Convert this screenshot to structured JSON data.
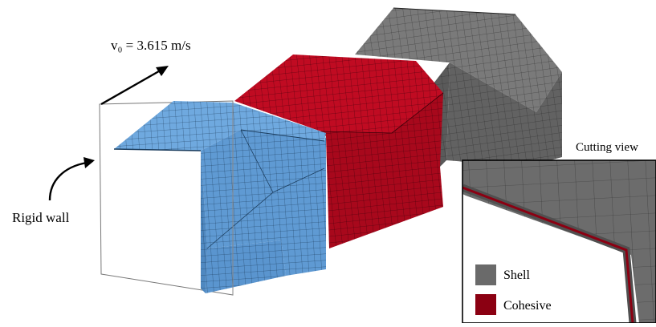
{
  "labels": {
    "velocity": "v₀ = 3.615 m/s",
    "rigid_wall": "Rigid wall",
    "cutting_view": "Cutting view"
  },
  "legend": [
    {
      "label": "Shell",
      "color": "#6a6a6a"
    },
    {
      "label": "Cohesive",
      "color": "#8b0012"
    }
  ],
  "colors": {
    "blue_module": "#6aa5dc",
    "red_module": "#b8091f",
    "gray_module": "#6e6e6e",
    "mesh_line": "#000000"
  }
}
